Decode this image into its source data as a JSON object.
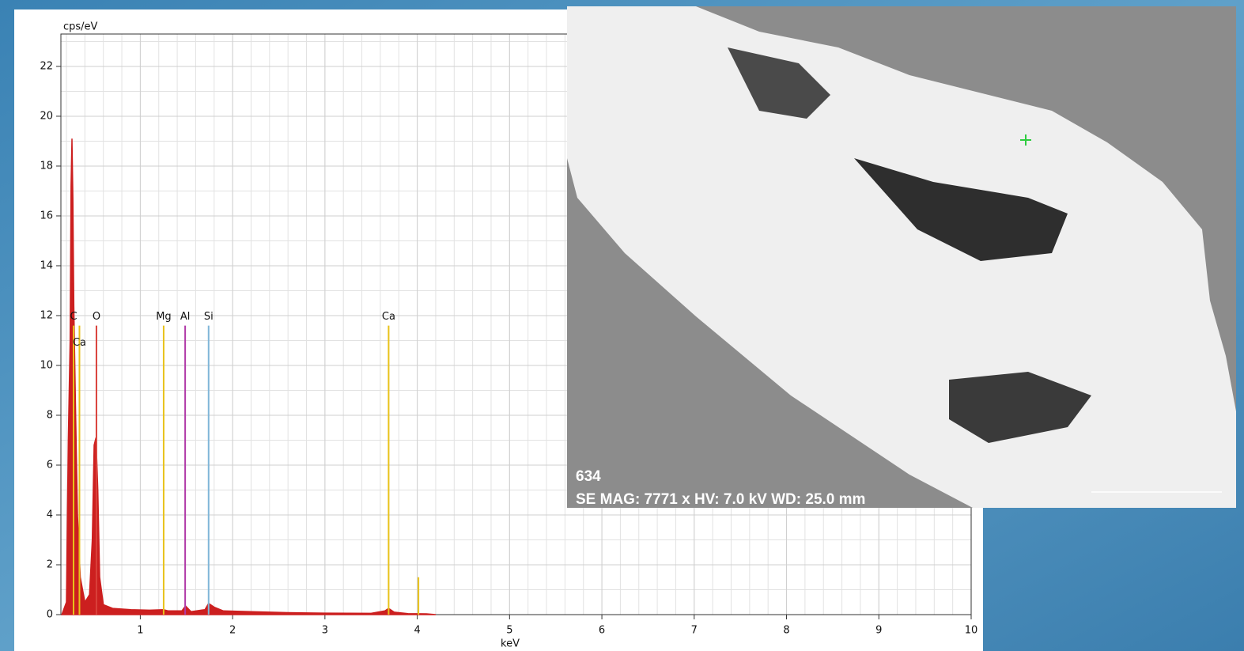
{
  "chart_data": {
    "type": "spectrum",
    "y_label": "cps/eV",
    "x_label": "keV",
    "xlim": [
      0.14,
      10
    ],
    "ylim": [
      0,
      23.3
    ],
    "xticks": [
      1,
      2,
      3,
      4,
      5,
      6,
      7,
      8,
      9,
      10
    ],
    "yticks": [
      0,
      2,
      4,
      6,
      8,
      10,
      12,
      14,
      16,
      18,
      20,
      22
    ],
    "grid": true,
    "minor_grid": true,
    "spectrum": {
      "color": "#cc1f1f",
      "x": [
        0.15,
        0.2,
        0.22,
        0.24,
        0.25,
        0.26,
        0.27,
        0.28,
        0.3,
        0.32,
        0.35,
        0.4,
        0.45,
        0.48,
        0.5,
        0.52,
        0.54,
        0.56,
        0.6,
        0.7,
        0.9,
        1.1,
        1.25,
        1.3,
        1.45,
        1.49,
        1.55,
        1.7,
        1.74,
        1.8,
        1.9,
        2.2,
        2.6,
        3.0,
        3.5,
        3.65,
        3.69,
        3.75,
        3.9,
        4.1,
        4.2
      ],
      "y": [
        0,
        0.5,
        7,
        11,
        17.2,
        19.1,
        16.7,
        12.4,
        8,
        4,
        1.5,
        0.5,
        0.8,
        3,
        6.8,
        7.1,
        5,
        1.5,
        0.4,
        0.25,
        0.2,
        0.18,
        0.2,
        0.15,
        0.15,
        0.35,
        0.12,
        0.2,
        0.45,
        0.3,
        0.15,
        0.12,
        0.08,
        0.06,
        0.05,
        0.15,
        0.25,
        0.1,
        0.04,
        0.03,
        0
      ]
    },
    "markers": [
      {
        "label": "C",
        "x": 0.277,
        "height": 11.6,
        "color": "#e8c21a"
      },
      {
        "label": "Ca",
        "x": 0.341,
        "height": 11.6,
        "color": "#e8c21a"
      },
      {
        "label": "O",
        "x": 0.525,
        "height": 11.6,
        "color": "#d9413a"
      },
      {
        "label": "Mg",
        "x": 1.253,
        "height": 11.6,
        "color": "#e8c21a"
      },
      {
        "label": "Al",
        "x": 1.486,
        "height": 11.6,
        "color": "#b03aa8"
      },
      {
        "label": "Si",
        "x": 1.74,
        "height": 11.6,
        "color": "#7fb6d8"
      },
      {
        "label": "Ca",
        "x": 3.69,
        "height": 11.6,
        "color": "#e8c21a"
      },
      {
        "label": null,
        "x": 4.013,
        "height": 1.5,
        "color": "#e8c21a"
      }
    ]
  },
  "sem_image": {
    "id": "634",
    "caption": "SE  MAG: 7771 x  HV: 7.0 kV  WD: 25.0 mm"
  }
}
